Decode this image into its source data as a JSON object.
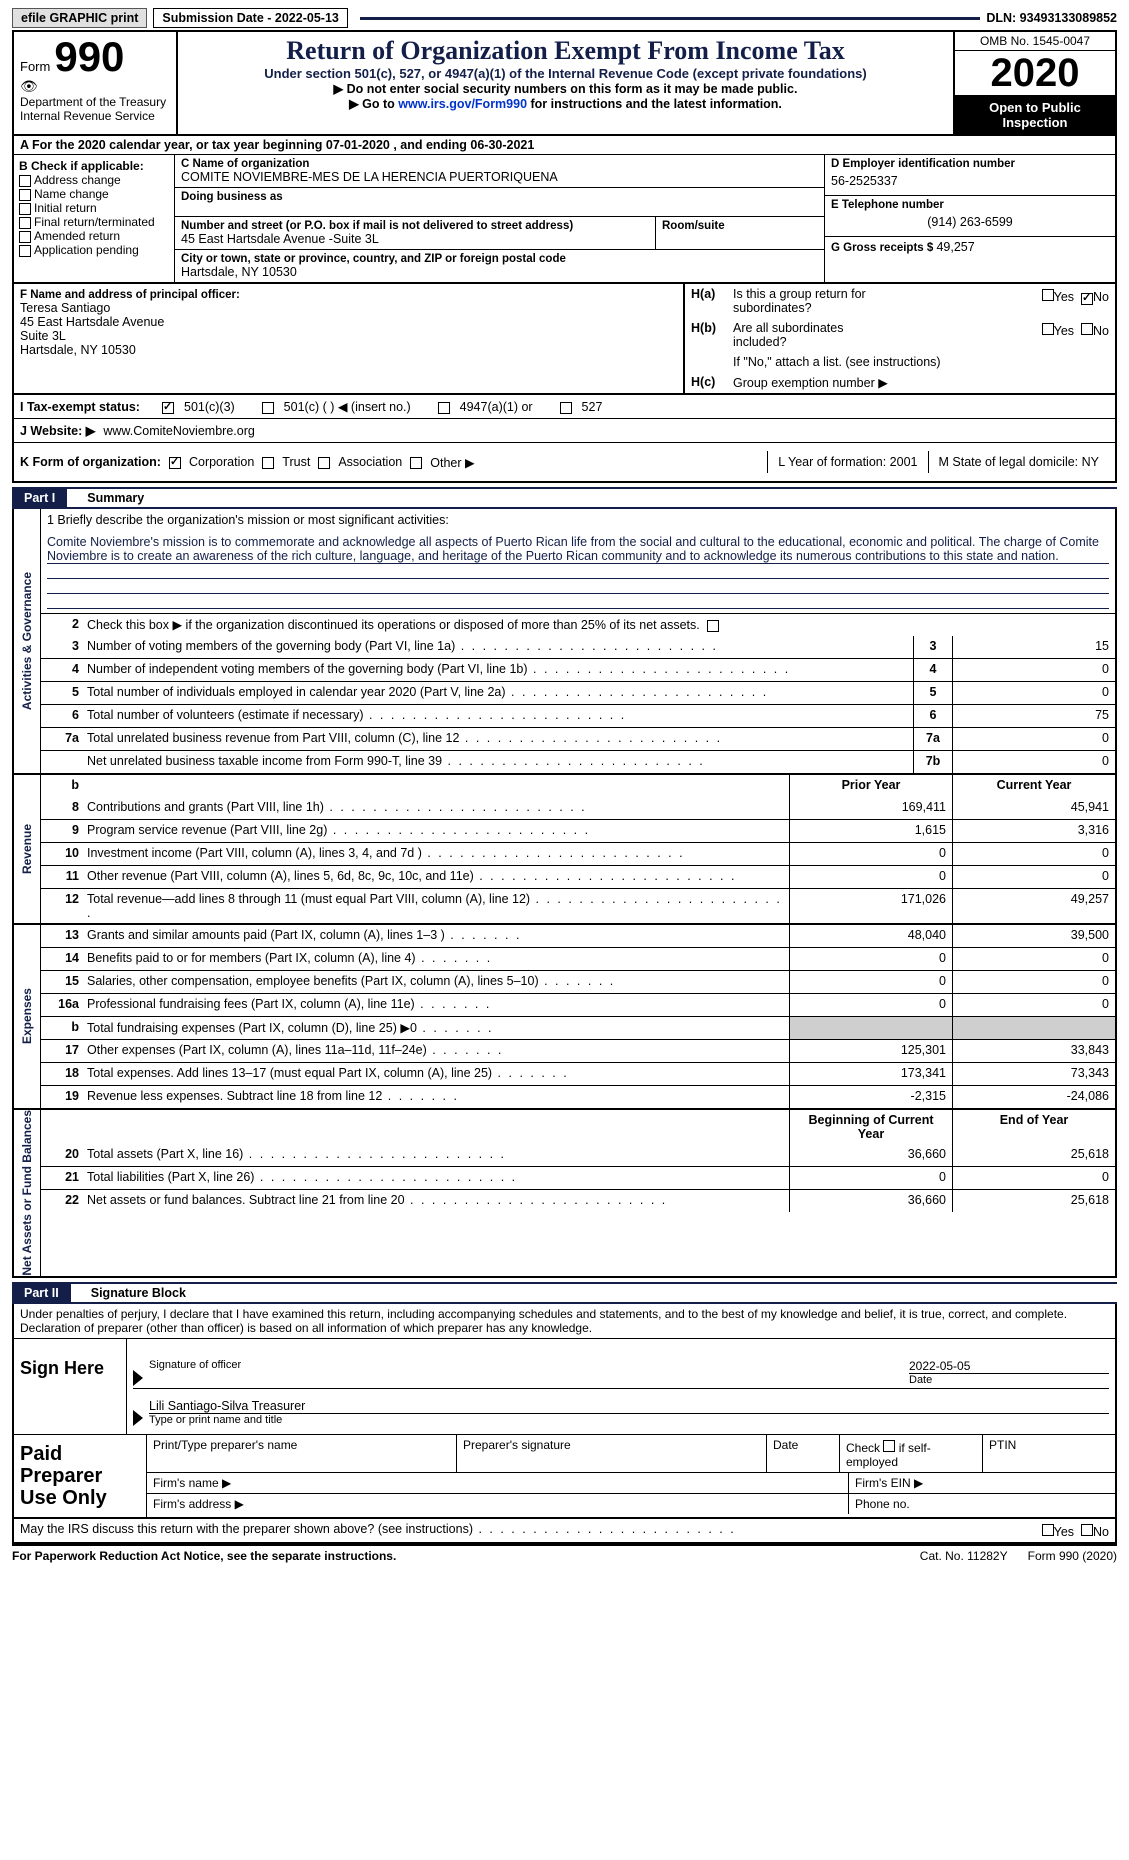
{
  "top": {
    "efile": "efile GRAPHIC print",
    "subdate_label": "Submission Date - ",
    "subdate": "2022-05-13",
    "dln_label": "DLN: ",
    "dln": "93493133089852"
  },
  "header": {
    "form_word": "Form",
    "form_num": "990",
    "dept1": "Department of the Treasury",
    "dept2": "Internal Revenue Service",
    "title": "Return of Organization Exempt From Income Tax",
    "sub": "Under section 501(c), 527, or 4947(a)(1) of the Internal Revenue Code (except private foundations)",
    "warn": "▶ Do not enter social security numbers on this form as it may be made public.",
    "golink_pre": "▶ Go to ",
    "golink_url": "www.irs.gov/Form990",
    "golink_post": " for instructions and the latest information.",
    "omb": "OMB No. 1545-0047",
    "year": "2020",
    "open": "Open to Public Inspection"
  },
  "periodA": "A For the 2020 calendar year, or tax year beginning 07-01-2020    , and ending 06-30-2021",
  "B": {
    "title": "B Check if applicable:",
    "opts": [
      "Address change",
      "Name change",
      "Initial return",
      "Final return/terminated",
      "Amended return",
      "Application pending"
    ]
  },
  "C": {
    "label": "C Name of organization",
    "name": "COMITE NOVIEMBRE-MES DE LA HERENCIA PUERTORIQUENA",
    "dba_label": "Doing business as",
    "addr_label": "Number and street (or P.O. box if mail is not delivered to street address)",
    "addr": "45 East Hartsdale Avenue -Suite 3L",
    "room_label": "Room/suite",
    "city_label": "City or town, state or province, country, and ZIP or foreign postal code",
    "city": "Hartsdale, NY  10530"
  },
  "DE": {
    "d_label": "D Employer identification number",
    "d": "56-2525337",
    "e_label": "E Telephone number",
    "e": "(914) 263-6599",
    "g_label": "G Gross receipts $ ",
    "g": "49,257"
  },
  "F": {
    "label": "F  Name and address of principal officer:",
    "l1": "Teresa Santiago",
    "l2": "45 East Hartsdale Avenue",
    "l3": "Suite 3L",
    "l4": "Hartsdale, NY  10530"
  },
  "H": {
    "a1": "Is this a group return for",
    "a2": "subordinates?",
    "b1": "Are all subordinates",
    "b2": "included?",
    "note": "If \"No,\" attach a list. (see instructions)",
    "c": "Group exemption number ▶",
    "ha": "H(a)",
    "hb": "H(b)",
    "hc": "H(c)",
    "yes": "Yes",
    "no": "No"
  },
  "I": {
    "label": "I   Tax-exempt status:",
    "o1": "501(c)(3)",
    "o2": "501(c) (  ) ◀ (insert no.)",
    "o3": "4947(a)(1) or",
    "o4": "527"
  },
  "J": {
    "label": "J   Website: ▶",
    "val": "www.ComiteNoviembre.org"
  },
  "K": {
    "label": "K Form of organization:",
    "o1": "Corporation",
    "o2": "Trust",
    "o3": "Association",
    "o4": "Other ▶",
    "L": "L Year of formation: 2001",
    "M": "M State of legal domicile: NY"
  },
  "part1": {
    "tag": "Part I",
    "title": "Summary"
  },
  "mission": {
    "intro": "1   Briefly describe the organization's mission or most significant activities:",
    "text": "Comite Noviembre's mission is to commemorate and acknowledge all aspects of Puerto Rican life from the social and cultural to the educational, economic and political. The charge of Comite Noviembre is to create an awareness of the rich culture, language, and heritage of the Puerto Rican community and to acknowledge its numerous contributions to this state and nation."
  },
  "summary": {
    "tabs": {
      "ag": "Activities & Governance",
      "rev": "Revenue",
      "exp": "Expenses",
      "net": "Net Assets or Fund Balances"
    },
    "l2": "Check this box ▶        if the organization discontinued its operations or disposed of more than 25% of its net assets.",
    "rows_ag": [
      {
        "n": "3",
        "d": "Number of voting members of the governing body (Part VI, line 1a)",
        "k": "3",
        "v": "15"
      },
      {
        "n": "4",
        "d": "Number of independent voting members of the governing body (Part VI, line 1b)",
        "k": "4",
        "v": "0"
      },
      {
        "n": "5",
        "d": "Total number of individuals employed in calendar year 2020 (Part V, line 2a)",
        "k": "5",
        "v": "0"
      },
      {
        "n": "6",
        "d": "Total number of volunteers (estimate if necessary)",
        "k": "6",
        "v": "75"
      },
      {
        "n": "7a",
        "d": "Total unrelated business revenue from Part VIII, column (C), line 12",
        "k": "7a",
        "v": "0"
      },
      {
        "n": "",
        "d": "Net unrelated business taxable income from Form 990-T, line 39",
        "k": "7b",
        "v": "0"
      }
    ],
    "colhead_b": "b",
    "colhead_prior": "Prior Year",
    "colhead_curr": "Current Year",
    "rows_rev": [
      {
        "n": "8",
        "d": "Contributions and grants (Part VIII, line 1h)",
        "p": "169,411",
        "c": "45,941"
      },
      {
        "n": "9",
        "d": "Program service revenue (Part VIII, line 2g)",
        "p": "1,615",
        "c": "3,316"
      },
      {
        "n": "10",
        "d": "Investment income (Part VIII, column (A), lines 3, 4, and 7d )",
        "p": "0",
        "c": "0"
      },
      {
        "n": "11",
        "d": "Other revenue (Part VIII, column (A), lines 5, 6d, 8c, 9c, 10c, and 11e)",
        "p": "0",
        "c": "0"
      },
      {
        "n": "12",
        "d": "Total revenue—add lines 8 through 11 (must equal Part VIII, column (A), line 12)",
        "p": "171,026",
        "c": "49,257"
      }
    ],
    "rows_exp": [
      {
        "n": "13",
        "d": "Grants and similar amounts paid (Part IX, column (A), lines 1–3 )",
        "p": "48,040",
        "c": "39,500"
      },
      {
        "n": "14",
        "d": "Benefits paid to or for members (Part IX, column (A), line 4)",
        "p": "0",
        "c": "0"
      },
      {
        "n": "15",
        "d": "Salaries, other compensation, employee benefits (Part IX, column (A), lines 5–10)",
        "p": "0",
        "c": "0"
      },
      {
        "n": "16a",
        "d": "Professional fundraising fees (Part IX, column (A), line 11e)",
        "p": "0",
        "c": "0"
      },
      {
        "n": "b",
        "d": "Total fundraising expenses (Part IX, column (D), line 25) ▶0",
        "p": "",
        "c": "",
        "shade": true
      },
      {
        "n": "17",
        "d": "Other expenses (Part IX, column (A), lines 11a–11d, 11f–24e)",
        "p": "125,301",
        "c": "33,843"
      },
      {
        "n": "18",
        "d": "Total expenses. Add lines 13–17 (must equal Part IX, column (A), line 25)",
        "p": "173,341",
        "c": "73,343"
      },
      {
        "n": "19",
        "d": "Revenue less expenses. Subtract line 18 from line 12",
        "p": "-2,315",
        "c": "-24,086"
      }
    ],
    "colhead_beg": "Beginning of Current Year",
    "colhead_end": "End of Year",
    "rows_net": [
      {
        "n": "20",
        "d": "Total assets (Part X, line 16)",
        "p": "36,660",
        "c": "25,618"
      },
      {
        "n": "21",
        "d": "Total liabilities (Part X, line 26)",
        "p": "0",
        "c": "0"
      },
      {
        "n": "22",
        "d": "Net assets or fund balances. Subtract line 21 from line 20",
        "p": "36,660",
        "c": "25,618"
      }
    ]
  },
  "part2": {
    "tag": "Part II",
    "title": "Signature Block"
  },
  "sig": {
    "decl": "Under penalties of perjury, I declare that I have examined this return, including accompanying schedules and statements, and to the best of my knowledge and belief, it is true, correct, and complete. Declaration of preparer (other than officer) is based on all information of which preparer has any knowledge.",
    "here": "Sign Here",
    "sigoff": "Signature of officer",
    "date": "2022-05-05",
    "date_lbl": "Date",
    "name": "Lili Santiago-Silva  Treasurer",
    "typeprint": "Type or print name and title"
  },
  "prep": {
    "title": "Paid Preparer Use Only",
    "r1c1": "Print/Type preparer's name",
    "r1c2": "Preparer's signature",
    "r1c3": "Date",
    "r1c4a": "Check",
    "r1c4b": "if self-employed",
    "r1c5": "PTIN",
    "r2a": "Firm's name    ▶",
    "r2b": "Firm's EIN ▶",
    "r3a": "Firm's address ▶",
    "r3b": "Phone no."
  },
  "discuss": {
    "q": "May the IRS discuss this return with the preparer shown above? (see instructions)",
    "yes": "Yes",
    "no": "No"
  },
  "footer": {
    "l": "For Paperwork Reduction Act Notice, see the separate instructions.",
    "m": "Cat. No. 11282Y",
    "r": "Form 990 (2020)"
  }
}
